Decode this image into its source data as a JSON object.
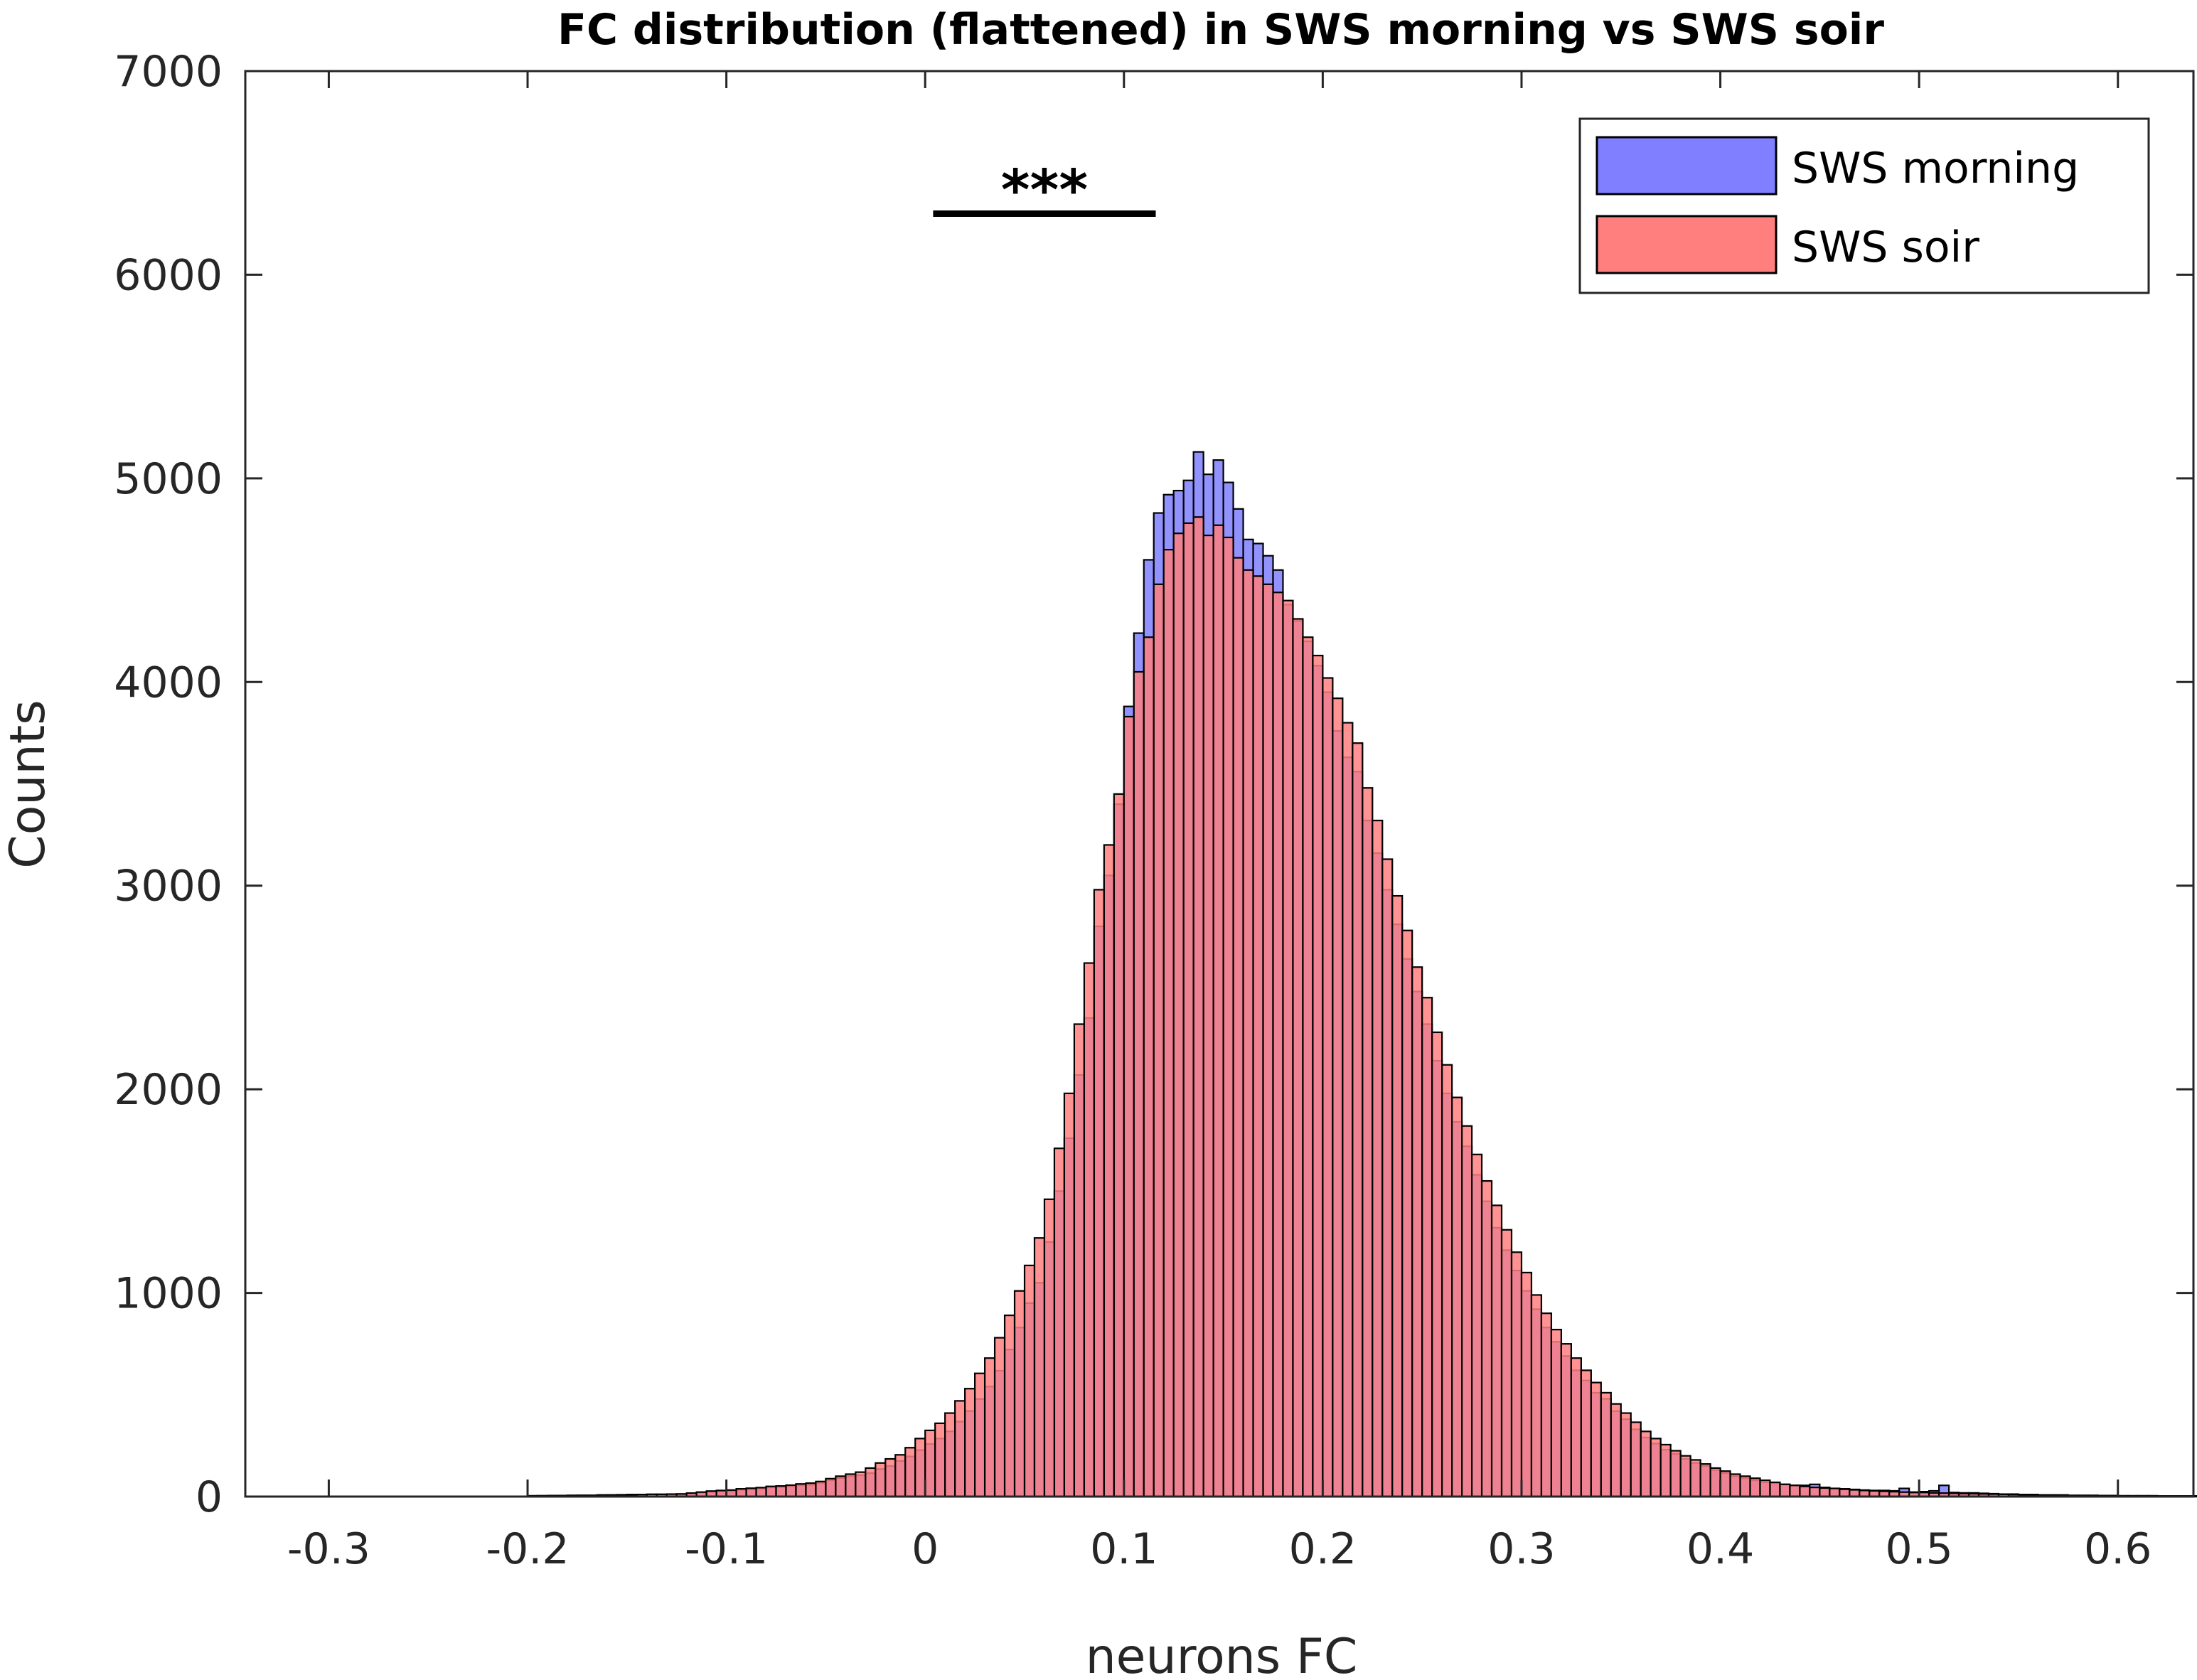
{
  "chart_data": {
    "type": "bar",
    "title": "FC distribution (flattened) in SWS morning vs SWS soir",
    "xlabel": "neurons FC",
    "ylabel": "Counts",
    "xlim": [
      -0.342,
      0.638
    ],
    "ylim": [
      0,
      7000
    ],
    "xticks": [
      -0.3,
      -0.2,
      -0.1,
      0,
      0.1,
      0.2,
      0.3,
      0.4,
      0.5,
      0.6
    ],
    "xtick_labels": [
      "-0.3",
      "-0.2",
      "-0.1",
      "0",
      "0.1",
      "0.2",
      "0.3",
      "0.4",
      "0.5",
      "0.6"
    ],
    "yticks": [
      0,
      1000,
      2000,
      3000,
      4000,
      5000,
      6000,
      7000
    ],
    "ytick_labels": [
      "0",
      "1000",
      "2000",
      "3000",
      "4000",
      "5000",
      "6000",
      "7000"
    ],
    "grid": false,
    "legend_position": "top-right",
    "significance": {
      "label": "***",
      "x_start": 0.004,
      "x_end": 0.116,
      "y": 6300
    },
    "bin_width": 0.005,
    "bin_start": -0.2,
    "series": [
      {
        "name": "SWS morning",
        "color": "#7f7fff",
        "values": [
          4,
          4,
          5,
          5,
          6,
          6,
          6,
          8,
          8,
          9,
          10,
          10,
          11,
          11,
          12,
          12,
          16,
          20,
          24,
          26,
          26,
          33,
          36,
          39,
          45,
          47,
          50,
          55,
          58,
          67,
          80,
          91,
          100,
          105,
          115,
          135,
          150,
          175,
          197,
          228,
          258,
          285,
          320,
          368,
          420,
          479,
          540,
          618,
          722,
          830,
          950,
          1050,
          1250,
          1500,
          1760,
          2070,
          2350,
          2800,
          3050,
          3400,
          3880,
          4240,
          4600,
          4830,
          4920,
          4940,
          4990,
          5130,
          5020,
          5090,
          4980,
          4850,
          4700,
          4680,
          4620,
          4550,
          4380,
          4300,
          4200,
          4080,
          3950,
          3760,
          3630,
          3560,
          3320,
          3160,
          2980,
          2810,
          2640,
          2480,
          2320,
          2140,
          1980,
          1840,
          1720,
          1580,
          1450,
          1320,
          1210,
          1110,
          1010,
          920,
          830,
          760,
          690,
          620,
          570,
          510,
          480,
          420,
          380,
          330,
          290,
          260,
          230,
          210,
          185,
          165,
          150,
          130,
          115,
          100,
          90,
          80,
          70,
          65,
          60,
          55,
          55,
          60,
          45,
          40,
          38,
          35,
          32,
          30,
          30,
          28,
          40,
          22,
          24,
          28,
          55,
          20,
          18,
          18,
          16,
          14,
          12,
          12,
          10,
          10,
          8,
          8,
          8,
          6,
          6,
          6,
          5,
          5,
          4,
          4,
          4,
          4,
          3,
          3,
          3,
          3,
          2,
          2,
          2,
          2,
          2,
          2,
          1,
          1,
          1,
          1,
          1,
          1,
          1,
          1,
          1,
          1,
          1,
          1
        ]
      },
      {
        "name": "SWS soir",
        "color": "#ff7f7f",
        "values": [
          3,
          4,
          4,
          5,
          5,
          6,
          6,
          7,
          8,
          8,
          9,
          10,
          11,
          11,
          12,
          13,
          17,
          22,
          27,
          30,
          32,
          38,
          41,
          44,
          50,
          52,
          56,
          62,
          66,
          74,
          88,
          100,
          110,
          120,
          140,
          165,
          185,
          205,
          240,
          285,
          325,
          360,
          410,
          470,
          530,
          605,
          680,
          780,
          890,
          1010,
          1135,
          1270,
          1460,
          1710,
          1980,
          2320,
          2620,
          2980,
          3200,
          3450,
          3830,
          4050,
          4220,
          4480,
          4650,
          4730,
          4780,
          4810,
          4720,
          4770,
          4710,
          4610,
          4550,
          4520,
          4480,
          4440,
          4400,
          4310,
          4220,
          4130,
          4020,
          3920,
          3800,
          3700,
          3480,
          3320,
          3130,
          2950,
          2780,
          2600,
          2450,
          2280,
          2120,
          1960,
          1820,
          1680,
          1550,
          1430,
          1310,
          1200,
          1100,
          990,
          900,
          820,
          750,
          680,
          620,
          560,
          510,
          455,
          410,
          365,
          320,
          285,
          255,
          225,
          200,
          180,
          160,
          140,
          125,
          110,
          100,
          90,
          80,
          70,
          60,
          55,
          50,
          45,
          42,
          40,
          36,
          33,
          30,
          28,
          26,
          24,
          22,
          20,
          20,
          18,
          17,
          16,
          15,
          14,
          13,
          12,
          11,
          10,
          9,
          8,
          7,
          7,
          6,
          5,
          5,
          4,
          4,
          4,
          3,
          3,
          3,
          3,
          2,
          2,
          2,
          2,
          2,
          2,
          2,
          1,
          1,
          1,
          1,
          1,
          1,
          1,
          1,
          1,
          1,
          1
        ]
      }
    ]
  }
}
